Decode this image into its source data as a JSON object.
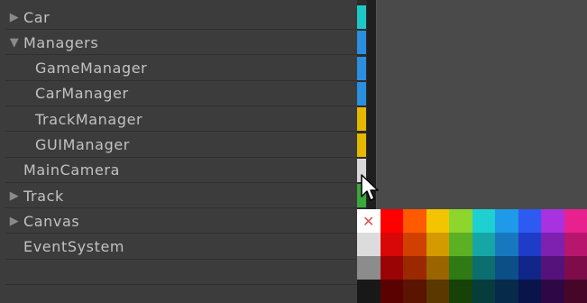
{
  "hierarchy": {
    "items": [
      {
        "label": "Car",
        "arrow": "▶"
      },
      {
        "label": "Managers",
        "arrow": "▼"
      },
      {
        "label": "GameManager",
        "arrow": ""
      },
      {
        "label": "CarManager",
        "arrow": ""
      },
      {
        "label": "TrackManager",
        "arrow": ""
      },
      {
        "label": "GUIManager",
        "arrow": ""
      },
      {
        "label": "MainCamera",
        "arrow": ""
      },
      {
        "label": "Track",
        "arrow": "▶"
      },
      {
        "label": "Canvas",
        "arrow": "▶"
      },
      {
        "label": "EventSystem",
        "arrow": ""
      }
    ]
  },
  "color_strip": [
    "#1fc8c8",
    "#2a8fe0",
    "#2a8fe0",
    "#2a8fe0",
    "#e6b800",
    "#e6b800",
    "#d8d8d8",
    "#3aa83a"
  ],
  "palette": {
    "none_glyph": "✕",
    "rows": [
      [
        "#ffffff",
        "#ff0000",
        "#ff5a00",
        "#f2c500",
        "#8ed62e",
        "#1ed0d0",
        "#1e9ae8",
        "#2d5af0",
        "#a832e0",
        "#e8218f"
      ],
      [
        "#dcdcdc",
        "#d80808",
        "#d04000",
        "#d49a00",
        "#5cb023",
        "#17a6a6",
        "#1778c0",
        "#1e3cc8",
        "#7e20b0",
        "#b8156e"
      ],
      [
        "#8c8c8c",
        "#9a0404",
        "#9a2800",
        "#9a6400",
        "#2f7a14",
        "#0c6e6e",
        "#0c4e86",
        "#102688",
        "#54127a",
        "#7e0c4a"
      ],
      [
        "#181818",
        "#5a0202",
        "#5a1400",
        "#5a3800",
        "#164208",
        "#063c3c",
        "#062a4a",
        "#08144a",
        "#2e0844",
        "#460628"
      ]
    ]
  }
}
